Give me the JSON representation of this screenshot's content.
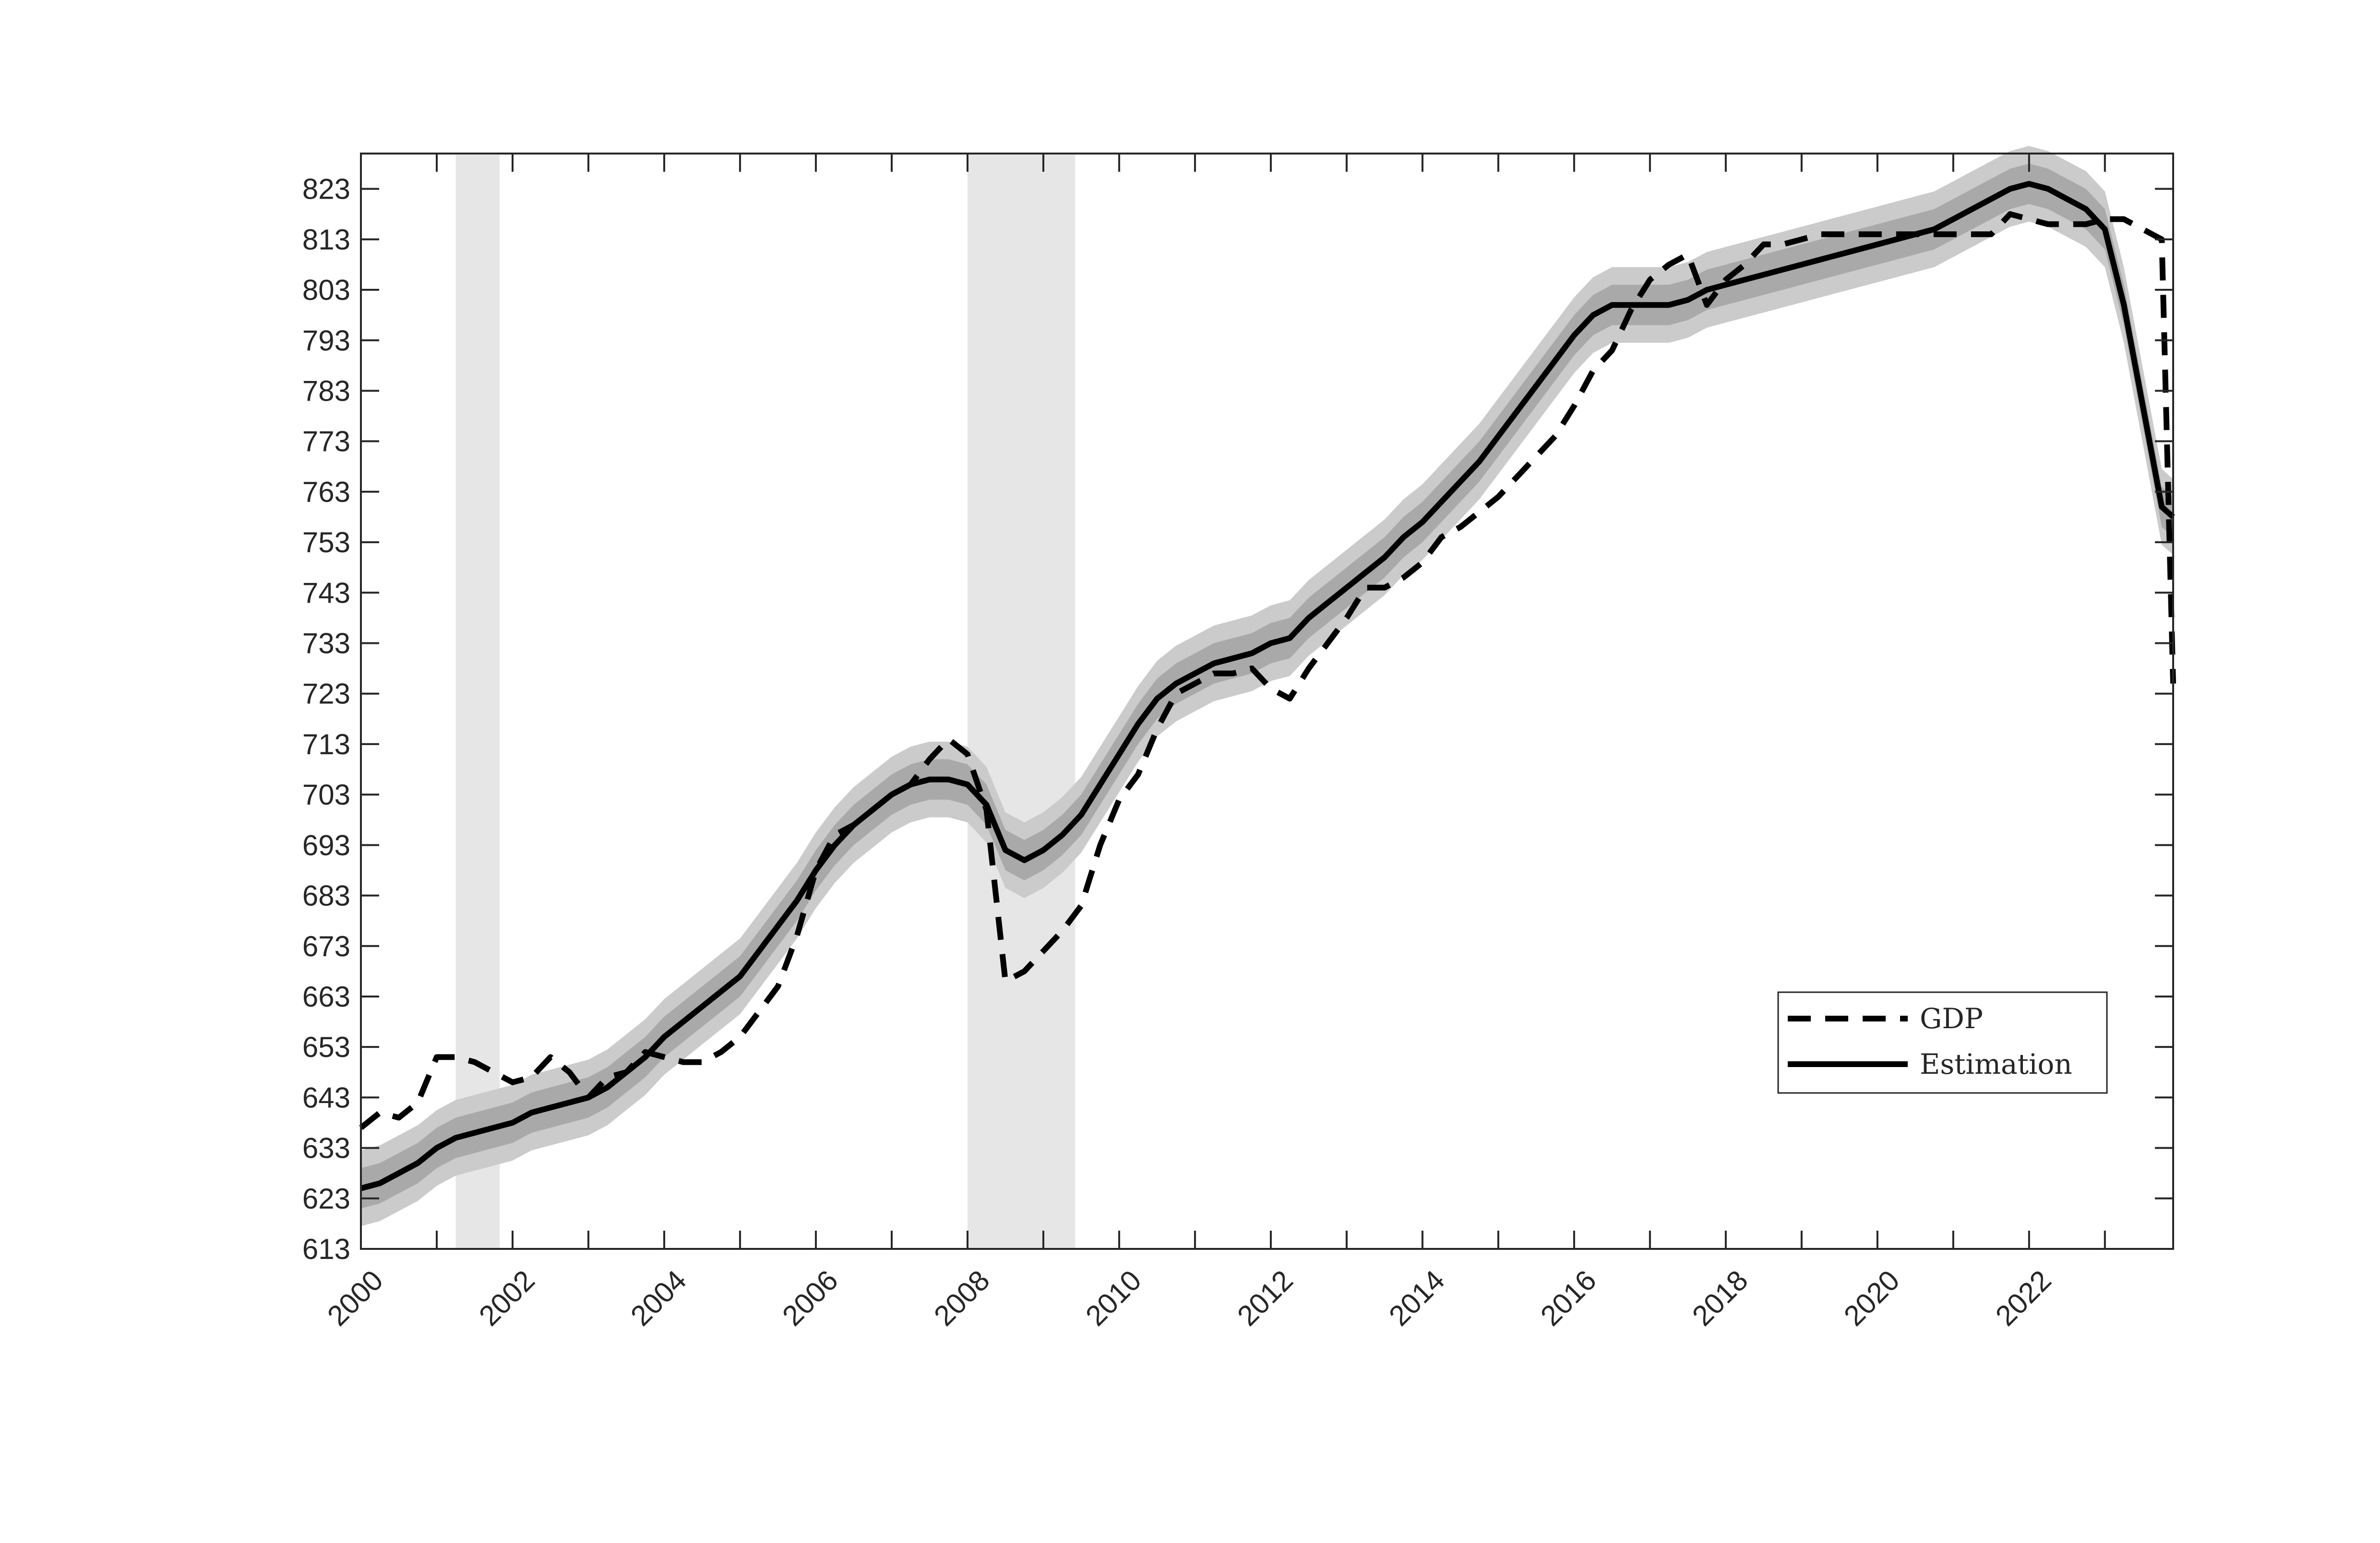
{
  "chart_data": {
    "type": "line",
    "title": "",
    "xlabel": "",
    "ylabel": "",
    "xlim": [
      2000.0,
      2023.9
    ],
    "ylim": [
      613,
      830
    ],
    "x_ticks": [
      2000,
      2002,
      2004,
      2006,
      2008,
      2010,
      2012,
      2014,
      2016,
      2018,
      2020,
      2022
    ],
    "x_tick_labels": [
      "2000",
      "2002",
      "2004",
      "2006",
      "2008",
      "2010",
      "2012",
      "2014",
      "2016",
      "2018",
      "2020",
      "2022"
    ],
    "y_ticks": [
      613,
      623,
      633,
      643,
      653,
      663,
      673,
      683,
      693,
      703,
      713,
      723,
      733,
      743,
      753,
      763,
      773,
      783,
      793,
      803,
      813,
      823
    ],
    "y_tick_labels": [
      "613",
      "623",
      "633",
      "643",
      "653",
      "663",
      "673",
      "683",
      "693",
      "703",
      "713",
      "723",
      "733",
      "743",
      "753",
      "763",
      "773",
      "783",
      "793",
      "803",
      "813",
      "823"
    ],
    "grid": false,
    "legend_position": "lower-right",
    "recession_shading": [
      {
        "start": 2001.25,
        "end": 2001.83
      },
      {
        "start": 2008.0,
        "end": 2009.42
      }
    ],
    "series": [
      {
        "name": "GDP",
        "style": "dashed",
        "color": "#000000",
        "x": [
          2000.0,
          2000.25,
          2000.5,
          2000.75,
          2001.0,
          2001.25,
          2001.5,
          2001.75,
          2002.0,
          2002.25,
          2002.5,
          2002.75,
          2003.0,
          2003.25,
          2003.5,
          2003.75,
          2004.0,
          2004.25,
          2004.5,
          2004.75,
          2005.0,
          2005.25,
          2005.5,
          2005.75,
          2006.0,
          2006.25,
          2006.5,
          2006.75,
          2007.0,
          2007.25,
          2007.5,
          2007.75,
          2008.0,
          2008.25,
          2008.5,
          2008.75,
          2009.0,
          2009.25,
          2009.5,
          2009.75,
          2010.0,
          2010.25,
          2010.5,
          2010.75,
          2011.0,
          2011.25,
          2011.5,
          2011.75,
          2012.0,
          2012.25,
          2012.5,
          2012.75,
          2013.0,
          2013.25,
          2013.5,
          2013.75,
          2014.0,
          2014.25,
          2014.5,
          2014.75,
          2015.0,
          2015.25,
          2015.5,
          2015.75,
          2016.0,
          2016.25,
          2016.5,
          2016.75,
          2017.0,
          2017.25,
          2017.5,
          2017.75,
          2018.0,
          2018.25,
          2018.5,
          2018.75,
          2019.0,
          2019.25,
          2019.5,
          2019.75,
          2020.0,
          2020.25,
          2020.5,
          2020.75,
          2021.0,
          2021.25,
          2021.5,
          2021.75,
          2022.0,
          2022.25,
          2022.5,
          2022.75,
          2023.0,
          2023.25,
          2023.5,
          2023.75,
          2023.9
        ],
        "y": [
          637,
          640,
          639,
          642,
          651,
          651,
          650,
          648,
          646,
          647,
          651,
          648,
          643,
          647,
          648,
          652,
          651,
          650,
          650,
          652,
          655,
          660,
          665,
          675,
          688,
          695,
          697,
          700,
          703,
          705,
          710,
          714,
          711,
          700,
          666,
          668,
          672,
          676,
          681,
          693,
          702,
          707,
          716,
          723,
          725,
          727,
          727,
          728,
          724,
          722,
          728,
          733,
          738,
          744,
          744,
          746,
          749,
          754,
          756,
          759,
          762,
          766,
          770,
          774,
          780,
          787,
          791,
          799,
          805,
          808,
          810,
          800,
          805,
          808,
          812,
          812,
          813,
          814,
          814,
          814,
          814,
          814,
          814,
          814,
          814,
          814,
          814,
          818,
          817,
          816,
          816,
          816,
          817,
          817,
          815,
          813,
          725
        ]
      },
      {
        "name": "Estimation",
        "style": "solid",
        "color": "#000000",
        "x": [
          2000.0,
          2000.25,
          2000.5,
          2000.75,
          2001.0,
          2001.25,
          2001.5,
          2001.75,
          2002.0,
          2002.25,
          2002.5,
          2002.75,
          2003.0,
          2003.25,
          2003.5,
          2003.75,
          2004.0,
          2004.25,
          2004.5,
          2004.75,
          2005.0,
          2005.25,
          2005.5,
          2005.75,
          2006.0,
          2006.25,
          2006.5,
          2006.75,
          2007.0,
          2007.25,
          2007.5,
          2007.75,
          2008.0,
          2008.25,
          2008.5,
          2008.75,
          2009.0,
          2009.25,
          2009.5,
          2009.75,
          2010.0,
          2010.25,
          2010.5,
          2010.75,
          2011.0,
          2011.25,
          2011.5,
          2011.75,
          2012.0,
          2012.25,
          2012.5,
          2012.75,
          2013.0,
          2013.25,
          2013.5,
          2013.75,
          2014.0,
          2014.25,
          2014.5,
          2014.75,
          2015.0,
          2015.25,
          2015.5,
          2015.75,
          2016.0,
          2016.25,
          2016.5,
          2016.75,
          2017.0,
          2017.25,
          2017.5,
          2017.75,
          2018.0,
          2018.25,
          2018.5,
          2018.75,
          2019.0,
          2019.25,
          2019.5,
          2019.75,
          2020.0,
          2020.25,
          2020.5,
          2020.75,
          2021.0,
          2021.25,
          2021.5,
          2021.75,
          2022.0,
          2022.25,
          2022.5,
          2022.75,
          2023.0,
          2023.25,
          2023.5,
          2023.75,
          2023.9
        ],
        "y": [
          625,
          626,
          628,
          630,
          633,
          635,
          636,
          637,
          638,
          640,
          641,
          642,
          643,
          645,
          648,
          651,
          655,
          658,
          661,
          664,
          667,
          672,
          677,
          682,
          688,
          693,
          697,
          700,
          703,
          705,
          706,
          706,
          705,
          701,
          692,
          690,
          692,
          695,
          699,
          705,
          711,
          717,
          722,
          725,
          727,
          729,
          730,
          731,
          733,
          734,
          738,
          741,
          744,
          747,
          750,
          754,
          757,
          761,
          765,
          769,
          774,
          779,
          784,
          789,
          794,
          798,
          800,
          800,
          800,
          800,
          801,
          803,
          804,
          805,
          806,
          807,
          808,
          809,
          810,
          811,
          812,
          813,
          814,
          815,
          817,
          819,
          821,
          823,
          824,
          823,
          821,
          819,
          815,
          800,
          780,
          760,
          758
        ]
      }
    ]
  },
  "legend": {
    "items": [
      {
        "label": "GDP"
      },
      {
        "label": "Estimation"
      }
    ]
  },
  "colors": {
    "band_outer": "#cbcbcb",
    "band_inner": "#a9a9a9",
    "recession": "#e6e6e6",
    "axis": "#262626"
  }
}
